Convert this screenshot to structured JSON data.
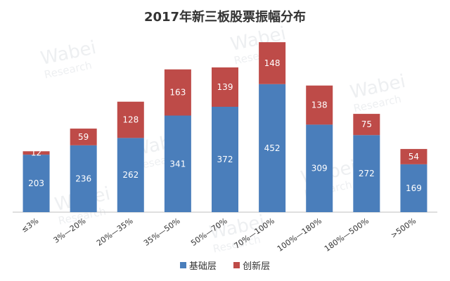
{
  "chart_data": {
    "type": "bar",
    "stacked": true,
    "title": "2017年新三板股票振幅分布",
    "categories": [
      "≤3%",
      "3%—20%",
      "20%—35%",
      "35%—50%",
      "50%—70%",
      "70%—100%",
      "100%—180%",
      "180%—500%",
      ">500%"
    ],
    "series": [
      {
        "name": "基础层",
        "color": "#4a7ebb",
        "values": [
          203,
          236,
          262,
          341,
          372,
          452,
          309,
          272,
          169
        ]
      },
      {
        "name": "创新层",
        "color": "#be4b48",
        "values": [
          12,
          59,
          128,
          163,
          139,
          148,
          138,
          75,
          54
        ]
      }
    ],
    "ylim": [
      0,
      620
    ],
    "grid": false,
    "legend": "bottom",
    "watermark": [
      "Wabei",
      "Research"
    ]
  }
}
